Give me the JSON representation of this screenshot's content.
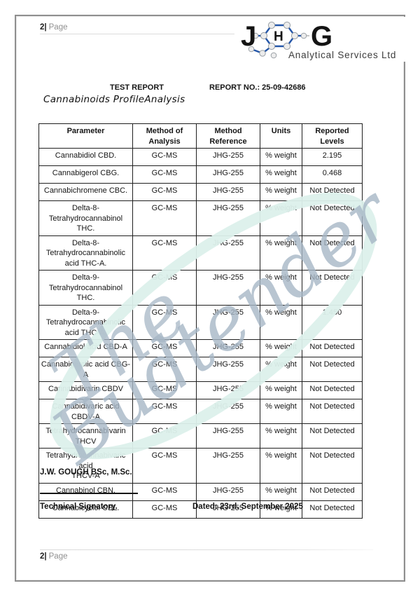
{
  "page": {
    "header_number": "2|",
    "header_label": "Page",
    "footer_number": "2|",
    "footer_label": "Page"
  },
  "logo": {
    "letter_j": "J",
    "letter_h": "H",
    "letter_g": "G",
    "subtitle": "Analytical Services Ltd",
    "bond_color": "#2456a8",
    "atom_fill": "#ececec",
    "atom_stroke": "#9aa0a6"
  },
  "report": {
    "title": "TEST REPORT",
    "report_no": "REPORT NO.: 25-09-42686",
    "subtitle": "Cannabinoids ProfileAnalysis"
  },
  "table": {
    "headers": [
      "Parameter",
      "Method of Analysis",
      "Method Reference",
      "Units",
      "Reported Levels"
    ],
    "rows": [
      {
        "parameter": "Cannabidiol CBD.",
        "parameter2": "",
        "method": "GC-MS",
        "reference": "JHG-255",
        "units": "% weight",
        "result": "2.195",
        "tall": false
      },
      {
        "parameter": "Cannabigerol CBG.",
        "parameter2": "",
        "method": "GC-MS",
        "reference": "JHG-255",
        "units": "% weight",
        "result": "0.468",
        "tall": false
      },
      {
        "parameter": "Cannabichromene CBC.",
        "parameter2": "",
        "method": "GC-MS",
        "reference": "JHG-255",
        "units": "% weight",
        "result": "Not Detected",
        "tall": false
      },
      {
        "parameter": "Delta-8-Tetrahydrocannabinol",
        "parameter2": "THC.",
        "method": "GC-MS",
        "reference": "JHG-255",
        "units": "% weight",
        "result": "Not Detected",
        "tall": true
      },
      {
        "parameter": "Delta-8-Tetrahydrocannabinolic",
        "parameter2": "acid THC-A.",
        "method": "GC-MS",
        "reference": "JHG-255",
        "units": "% weight",
        "result": "Not Detected",
        "tall": true
      },
      {
        "parameter": "Delta-9-Tetrahydrocannabinol",
        "parameter2": "THC.",
        "method": "GC-MS",
        "reference": "JHG-255",
        "units": "% weight",
        "result": "Not Detected",
        "tall": true
      },
      {
        "parameter": "Delta-9-Tetrahydrocannabinolic",
        "parameter2": "acid THC-A.",
        "method": "GC-MS",
        "reference": "JHG-255",
        "units": "% weight",
        "result": "1.450",
        "tall": true
      },
      {
        "parameter": "Cannabidiol acid CBD-A",
        "parameter2": "",
        "method": "GC-MS",
        "reference": "JHG-255",
        "units": "% weight",
        "result": "Not Detected",
        "tall": false
      },
      {
        "parameter": "Cannabigerolic acid CBG-A",
        "parameter2": "",
        "method": "GC-MS",
        "reference": "JHG-255",
        "units": "% weight",
        "result": "Not Detected",
        "tall": false
      },
      {
        "parameter": "Cannabidivarin CBDV",
        "parameter2": "",
        "method": "GC-MS",
        "reference": "JHG-255",
        "units": "% weight",
        "result": "Not Detected",
        "tall": false
      },
      {
        "parameter": "Cannabidivaric acid CBDV-A",
        "parameter2": "",
        "method": "GC-MS",
        "reference": "JHG-255",
        "units": "% weight",
        "result": "Not Detected",
        "tall": false
      },
      {
        "parameter": "Tetrahydrocannabivarin THCV",
        "parameter2": "",
        "method": "GC-MS",
        "reference": "JHG-255",
        "units": "% weight",
        "result": "Not Detected",
        "tall": false
      },
      {
        "parameter": "Tetrahydrocannabivaric acid",
        "parameter2": "THCV-A",
        "method": "GC-MS",
        "reference": "JHG-255",
        "units": "% weight",
        "result": "Not Detected",
        "tall": true
      },
      {
        "parameter": "Cannabinol CBN.",
        "parameter2": "",
        "method": "GC-MS",
        "reference": "JHG-255",
        "units": "% weight",
        "result": "Not Detected",
        "tall": false
      },
      {
        "parameter": "Cannabicyclol CBL.",
        "parameter2": "",
        "method": "GC-MS",
        "reference": "JHG-255",
        "units": "% weight",
        "result": "Not Detected",
        "tall": false
      }
    ]
  },
  "signature": {
    "name": "J.W. GOUGH BSc, M.Sc.",
    "role": "Technical Signatory.",
    "date": "Dated: 23rd. September 2025"
  },
  "watermark": {
    "word1": "The",
    "word2": "Budtender",
    "text_color": "#a7b7c6",
    "swoosh_color": "#dcf0eb"
  }
}
